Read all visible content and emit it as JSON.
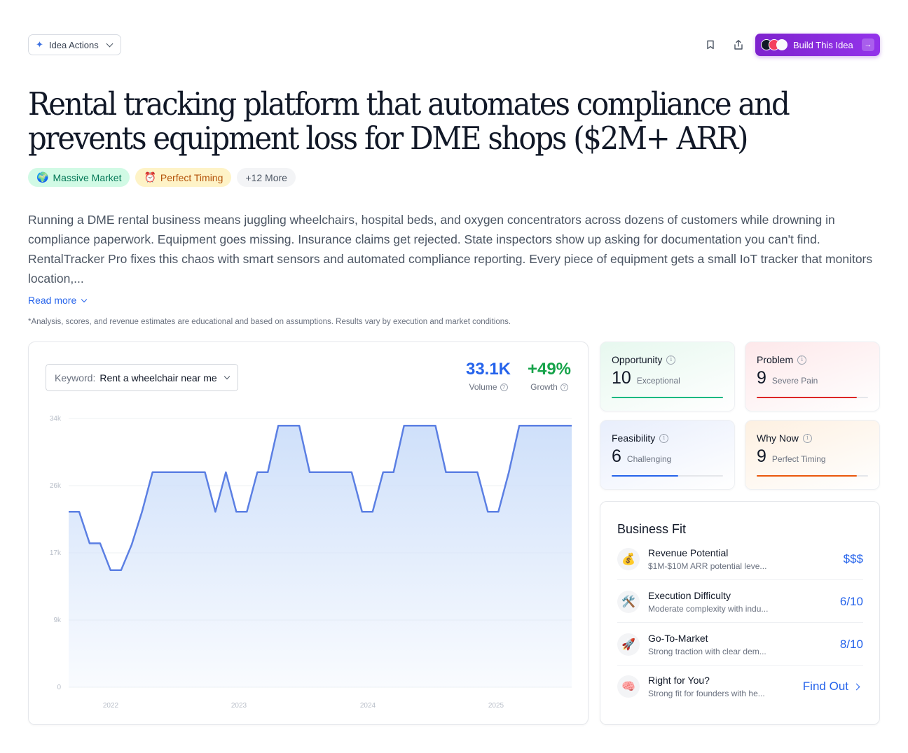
{
  "header": {
    "idea_actions_label": "Idea Actions",
    "build_label": "Build This Idea"
  },
  "title": "Rental tracking platform that automates compliance and prevents equipment loss for DME shops ($2M+ ARR)",
  "tags": [
    {
      "emoji": "🌍",
      "label": "Massive Market"
    },
    {
      "emoji": "⏰",
      "label": "Perfect Timing"
    },
    {
      "label": "+12 More"
    }
  ],
  "description": "Running a DME rental business means juggling wheelchairs, hospital beds, and oxygen concentrators across dozens of customers while drowning in compliance paperwork. Equipment goes missing. Insurance claims get rejected. State inspectors show up asking for documentation you can't find. RentalTracker Pro fixes this chaos with smart sensors and automated compliance reporting. Every piece of equipment gets a small IoT tracker that monitors location,...",
  "read_more": "Read more",
  "disclaimer": "*Analysis, scores, and revenue estimates are educational and based on assumptions. Results vary by execution and market conditions.",
  "keyword": {
    "label": "Keyword:",
    "value": "Rent a wheelchair near me"
  },
  "stats": {
    "volume": {
      "value": "33.1K",
      "label": "Volume",
      "color": "#2563eb"
    },
    "growth": {
      "value": "+49%",
      "label": "Growth",
      "color": "#16a34a"
    }
  },
  "chart_data": {
    "type": "area",
    "x_ticks": [
      "2022",
      "2023",
      "2024",
      "2025"
    ],
    "y_ticks": [
      "34k",
      "26k",
      "17k",
      "9k",
      "0"
    ],
    "ylim": [
      0,
      34000
    ],
    "line_color": "#5b7fe3",
    "fill_color": "#cfe0fa",
    "x": [
      "2021-09",
      "2021-10",
      "2021-11",
      "2021-12",
      "2022-01",
      "2022-02",
      "2022-03",
      "2022-04",
      "2022-05",
      "2022-06",
      "2022-07",
      "2022-08",
      "2022-09",
      "2022-10",
      "2022-11",
      "2022-12",
      "2023-01",
      "2023-02",
      "2023-03",
      "2023-04",
      "2023-05",
      "2023-06",
      "2023-07",
      "2023-08",
      "2023-09",
      "2023-10",
      "2023-11",
      "2023-12",
      "2024-01",
      "2024-02",
      "2024-03",
      "2024-04",
      "2024-05",
      "2024-06",
      "2024-07",
      "2024-08",
      "2024-09",
      "2024-10",
      "2024-11",
      "2024-12",
      "2025-01",
      "2025-02",
      "2025-03",
      "2025-04",
      "2025-05",
      "2025-06",
      "2025-07",
      "2025-08",
      "2025-09"
    ],
    "values": [
      22200,
      22200,
      18200,
      18200,
      14800,
      14800,
      18000,
      22200,
      27200,
      27200,
      27200,
      27200,
      27200,
      27200,
      22200,
      27200,
      22200,
      22200,
      27200,
      27200,
      33100,
      33100,
      33100,
      27200,
      27200,
      27200,
      27200,
      27200,
      22200,
      22200,
      27200,
      27200,
      33100,
      33100,
      33100,
      33100,
      27200,
      27200,
      27200,
      27200,
      22200,
      22200,
      27200,
      33100,
      33100,
      33100,
      33100,
      33100,
      33100
    ]
  },
  "scores": [
    {
      "name": "Opportunity",
      "value": "10",
      "sub": "Exceptional",
      "fraction": 1.0,
      "color": "#10b981",
      "bg": "linear-gradient(160deg,#e7f8ef,#ffffff)"
    },
    {
      "name": "Problem",
      "value": "9",
      "sub": "Severe Pain",
      "fraction": 0.9,
      "color": "#dc2626",
      "bg": "linear-gradient(160deg,#fde8ea,#ffffff)"
    },
    {
      "name": "Feasibility",
      "value": "6",
      "sub": "Challenging",
      "fraction": 0.6,
      "color": "#2563eb",
      "bg": "linear-gradient(160deg,#e8eefc,#ffffff)"
    },
    {
      "name": "Why Now",
      "value": "9",
      "sub": "Perfect Timing",
      "fraction": 0.9,
      "color": "#ea580c",
      "bg": "linear-gradient(160deg,#fdf0e1,#ffffff)"
    }
  ],
  "business_fit": {
    "title": "Business Fit",
    "rows": [
      {
        "emoji": "💰",
        "name": "Revenue Potential",
        "sub": "$1M-$10M ARR potential leve...",
        "value": "$$$"
      },
      {
        "emoji": "🛠️",
        "name": "Execution Difficulty",
        "sub": "Moderate complexity with indu...",
        "value": "6/10"
      },
      {
        "emoji": "🚀",
        "name": "Go-To-Market",
        "sub": "Strong traction with clear dem...",
        "value": "8/10"
      },
      {
        "emoji": "🧠",
        "name": "Right for You?",
        "sub": "Strong fit for founders with he...",
        "value": "Find Out"
      }
    ]
  }
}
